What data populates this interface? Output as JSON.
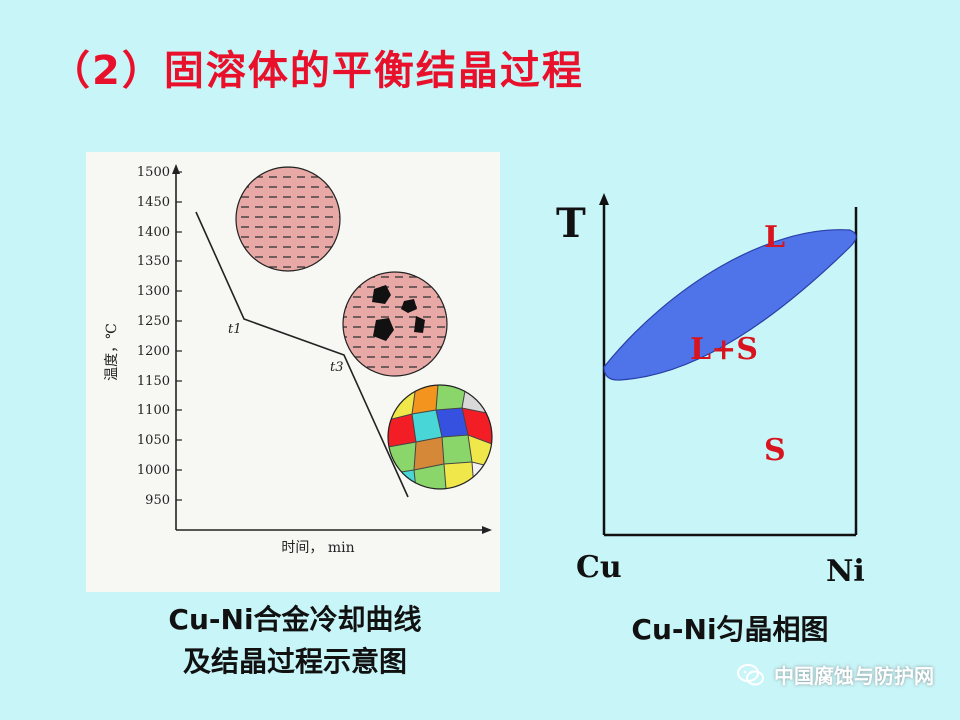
{
  "slide": {
    "title": "（2）固溶体的平衡结晶过程",
    "watermark": "中国腐蚀与防护网"
  },
  "cooling_curve": {
    "caption_line1": "Cu-Ni合金冷却曲线",
    "caption_line2": "及结晶过程示意图",
    "ylabel": "温度，℃",
    "xlabel": "时间，  min",
    "y_ticks": [
      "1500",
      "1450",
      "1400",
      "1350",
      "1300",
      "1250",
      "1200",
      "1150",
      "1100",
      "1050",
      "1000",
      "950"
    ],
    "point_labels": [
      "t1",
      "t3"
    ]
  },
  "phase_diagram": {
    "caption": "Cu-Ni匀晶相图",
    "y_axis": "T",
    "left_component": "Cu",
    "right_component": "Ni",
    "region_liquid": "L",
    "region_two_phase": "L+S",
    "region_solid": "S",
    "region_color": "#4f73e8",
    "label_color": "#d8141e"
  }
}
